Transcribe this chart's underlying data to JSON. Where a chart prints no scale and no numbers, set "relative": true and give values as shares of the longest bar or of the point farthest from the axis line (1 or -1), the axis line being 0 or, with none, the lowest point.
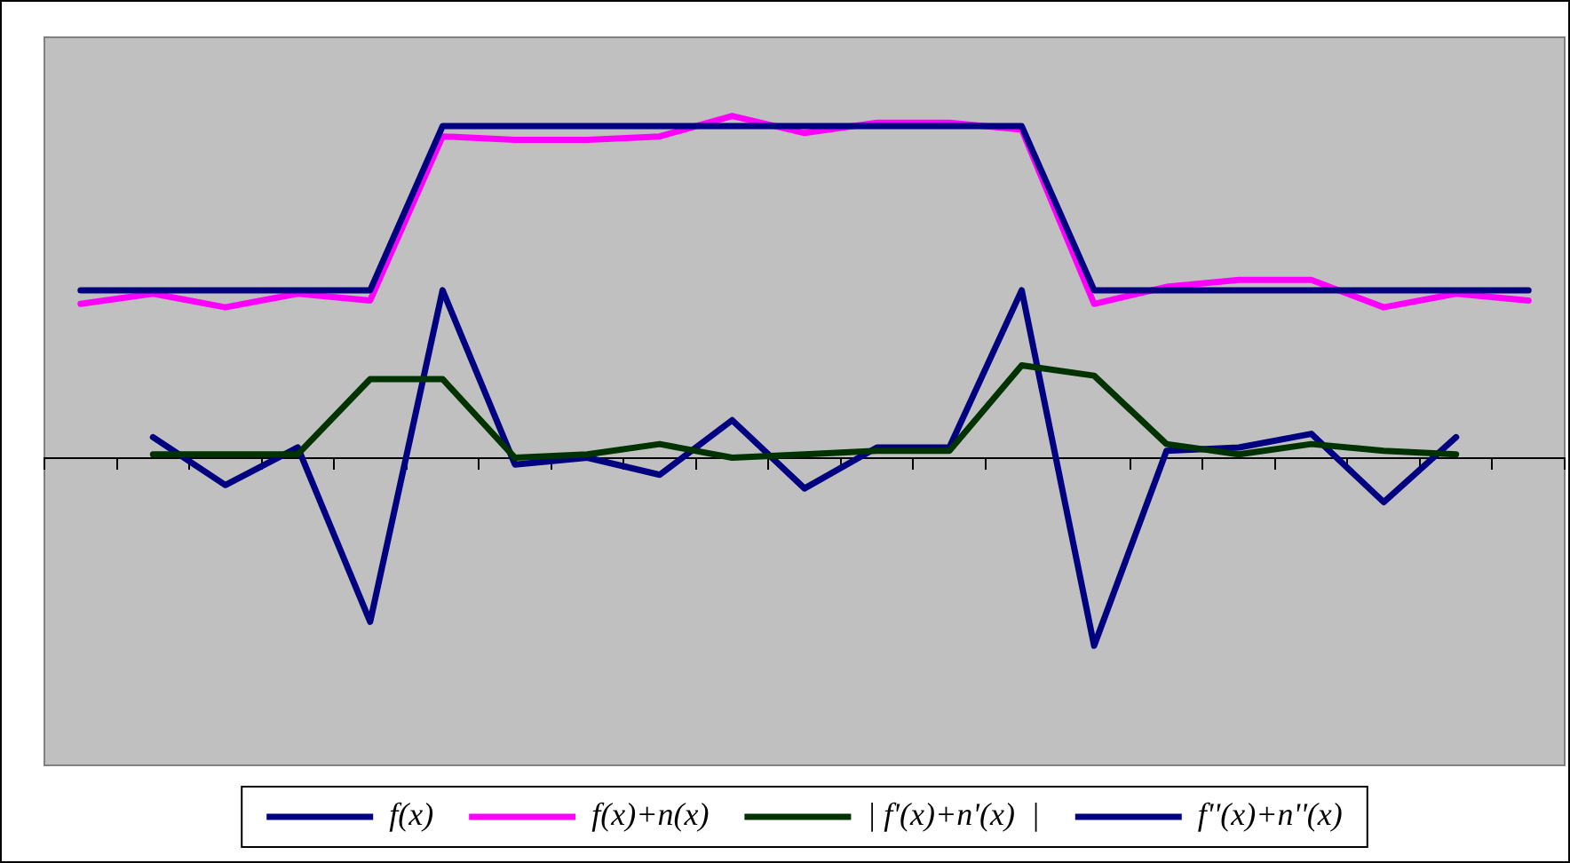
{
  "chart_data": {
    "type": "line",
    "relative": true,
    "categories": [
      null,
      null,
      null,
      null,
      null,
      null,
      null,
      null,
      null,
      null,
      null,
      null,
      null,
      null,
      null,
      null,
      null,
      null,
      null,
      null,
      null
    ],
    "series": [
      {
        "name": "f(x)",
        "color": "#000080",
        "values": [
          0.49,
          0.49,
          0.49,
          0.49,
          0.49,
          0.97,
          0.97,
          0.97,
          0.97,
          0.97,
          0.97,
          0.97,
          0.97,
          0.97,
          0.49,
          0.49,
          0.49,
          0.49,
          0.49,
          0.49,
          0.49
        ]
      },
      {
        "name": "f(x)+n(x)",
        "color": "#ff00ff",
        "values": [
          0.45,
          0.48,
          0.44,
          0.48,
          0.46,
          0.94,
          0.93,
          0.93,
          0.94,
          1,
          0.95,
          0.98,
          0.98,
          0.96,
          0.45,
          0.5,
          0.52,
          0.52,
          0.44,
          0.48,
          0.46
        ]
      },
      {
        "name": "| f'(x)+n'(x)  |",
        "color": "#003300",
        "values": [
          null,
          0.01,
          0.01,
          0.01,
          0.23,
          0.23,
          0,
          0.01,
          0.04,
          0,
          0.01,
          0.02,
          0.02,
          0.27,
          0.24,
          0.04,
          0.01,
          0.04,
          0.02,
          0.01,
          null
        ]
      },
      {
        "name": "f''(x)+n''(x)",
        "color": "#000080",
        "values": [
          null,
          0.06,
          -0.08,
          0.03,
          -0.48,
          0.49,
          -0.02,
          0,
          -0.05,
          0.11,
          -0.09,
          0.03,
          0.03,
          0.49,
          -0.55,
          0.02,
          0.03,
          0.07,
          -0.13,
          0.06,
          null
        ]
      }
    ],
    "legend": "bottom",
    "grid": false,
    "marker": "none",
    "line_style": "solid"
  }
}
